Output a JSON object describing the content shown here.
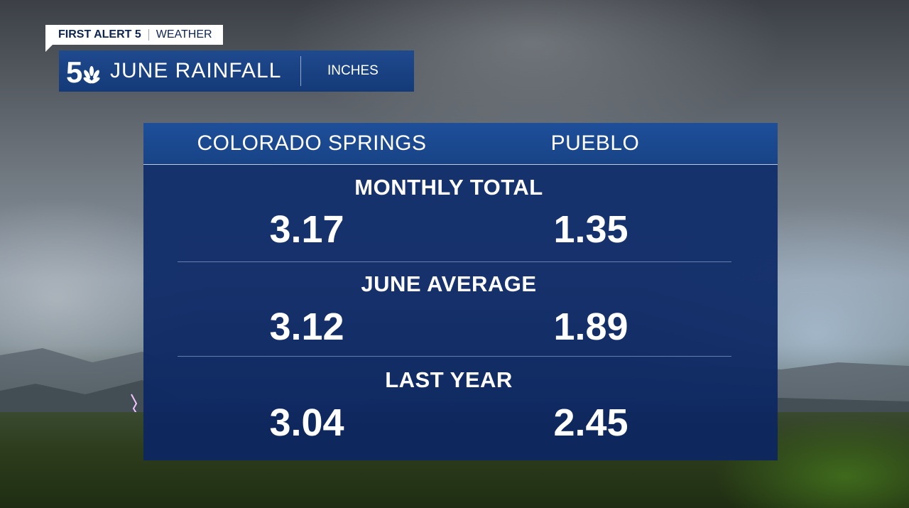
{
  "branding": {
    "alert_label": "FIRST ALERT 5",
    "weather_label": "WEATHER",
    "logo_icon": "nbc-5-logo-icon"
  },
  "header": {
    "title": "JUNE RAINFALL",
    "units": "INCHES"
  },
  "table": {
    "columns": [
      "COLORADO SPRINGS",
      "PUEBLO"
    ],
    "rows": [
      {
        "label": "MONTHLY TOTAL",
        "values": [
          "3.17",
          "1.35"
        ]
      },
      {
        "label": "JUNE AVERAGE",
        "values": [
          "3.12",
          "1.89"
        ]
      },
      {
        "label": "LAST YEAR",
        "values": [
          "3.04",
          "2.45"
        ]
      }
    ]
  },
  "colors": {
    "panel_blue": "#10306e",
    "header_blue": "#1e4f9a",
    "text": "#ffffff"
  }
}
